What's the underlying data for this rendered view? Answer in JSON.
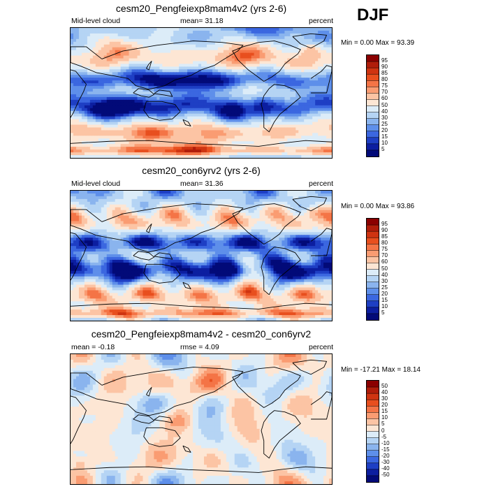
{
  "season": "DJF",
  "panels": [
    {
      "title": "cesm20_Pengfeiexp8mam4v2 (yrs 2-6)",
      "left": "Mid-level cloud",
      "center": "mean=  31.18",
      "right": "percent",
      "minmax": "Min =   0.00 Max =  93.39",
      "levels": [
        "95",
        "90",
        "85",
        "80",
        "75",
        "70",
        "60",
        "50",
        "40",
        "30",
        "25",
        "20",
        "15",
        "10",
        "5"
      ],
      "colors": [
        "#8b0000",
        "#b01d0a",
        "#cf3411",
        "#e84f1e",
        "#f47446",
        "#fa9c72",
        "#fcc4a4",
        "#fde6d4",
        "#dcecf8",
        "#b5d4f4",
        "#8ab4ee",
        "#5e8fea",
        "#3b67e0",
        "#1e3fc4",
        "#0c1ea0",
        "#020a78"
      ],
      "field": "cloud"
    },
    {
      "title": "cesm20_con6yrv2 (yrs 2-6)",
      "left": "Mid-level cloud",
      "center": "mean=  31.36",
      "right": "percent",
      "minmax": "Min =   0.00 Max =  93.86",
      "levels": [
        "95",
        "90",
        "85",
        "80",
        "75",
        "70",
        "60",
        "50",
        "40",
        "30",
        "25",
        "20",
        "15",
        "10",
        "5"
      ],
      "colors": [
        "#8b0000",
        "#b01d0a",
        "#cf3411",
        "#e84f1e",
        "#f47446",
        "#fa9c72",
        "#fcc4a4",
        "#fde6d4",
        "#dcecf8",
        "#b5d4f4",
        "#8ab4ee",
        "#5e8fea",
        "#3b67e0",
        "#1e3fc4",
        "#0c1ea0",
        "#020a78"
      ],
      "field": "cloud"
    },
    {
      "title": "cesm20_Pengfeiexp8mam4v2 - cesm20_con6yrv2",
      "left": "mean =  -0.18",
      "center": "rmse =   4.09",
      "right": "percent",
      "minmax": "Min = -17.21 Max =  18.14",
      "levels": [
        "50",
        "40",
        "30",
        "20",
        "15",
        "10",
        "5",
        "0",
        "-5",
        "-10",
        "-15",
        "-20",
        "-30",
        "-40",
        "-50"
      ],
      "colors": [
        "#8b0000",
        "#b01d0a",
        "#cf3411",
        "#e84f1e",
        "#f47446",
        "#fa9c72",
        "#fcc4a4",
        "#fde6d4",
        "#dcecf8",
        "#b5d4f4",
        "#8ab4ee",
        "#5e8fea",
        "#3b67e0",
        "#1e3fc4",
        "#0c1ea0",
        "#020a78"
      ],
      "field": "diff"
    }
  ],
  "chart_data": [
    {
      "type": "heatmap",
      "title": "cesm20_Pengfeiexp8mam4v2 (yrs 2-6)",
      "variable": "Mid-level cloud",
      "units": "percent",
      "mean": 31.18,
      "min": 0.0,
      "max": 93.39,
      "colorbar_levels": [
        5,
        10,
        15,
        20,
        25,
        30,
        40,
        50,
        60,
        70,
        75,
        80,
        85,
        90,
        95
      ]
    },
    {
      "type": "heatmap",
      "title": "cesm20_con6yrv2 (yrs 2-6)",
      "variable": "Mid-level cloud",
      "units": "percent",
      "mean": 31.36,
      "min": 0.0,
      "max": 93.86,
      "colorbar_levels": [
        5,
        10,
        15,
        20,
        25,
        30,
        40,
        50,
        60,
        70,
        75,
        80,
        85,
        90,
        95
      ]
    },
    {
      "type": "heatmap",
      "title": "cesm20_Pengfeiexp8mam4v2 - cesm20_con6yrv2",
      "units": "percent",
      "mean": -0.18,
      "rmse": 4.09,
      "min": -17.21,
      "max": 18.14,
      "colorbar_levels": [
        -50,
        -40,
        -30,
        -20,
        -15,
        -10,
        -5,
        0,
        5,
        10,
        15,
        20,
        30,
        40,
        50
      ]
    }
  ]
}
